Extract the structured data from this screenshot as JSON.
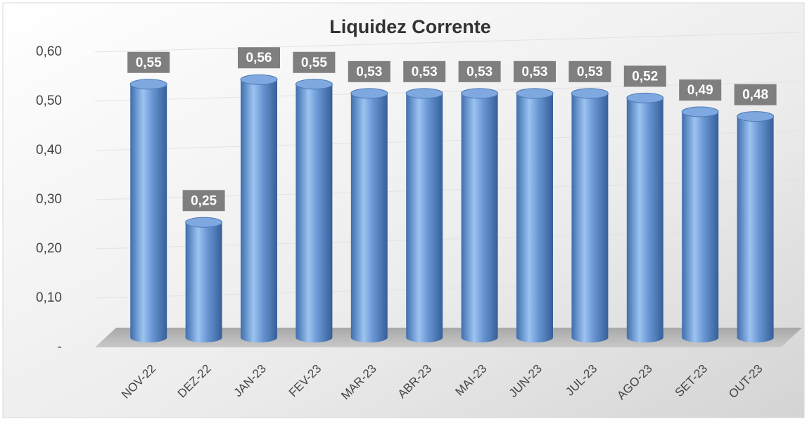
{
  "chart_data": {
    "type": "bar3d",
    "title": "Liquidez Corrente",
    "categories": [
      "NOV-22",
      "DEZ-22",
      "JAN-23",
      "FEV-23",
      "MAR-23",
      "ABR-23",
      "MAI-23",
      "JUN-23",
      "JUL-23",
      "AGO-23",
      "SET-23",
      "OUT-23"
    ],
    "values": [
      0.55,
      0.25,
      0.56,
      0.55,
      0.53,
      0.53,
      0.53,
      0.53,
      0.53,
      0.52,
      0.49,
      0.48
    ],
    "value_labels": [
      "0,55",
      "0,25",
      "0,56",
      "0,55",
      "0,53",
      "0,53",
      "0,53",
      "0,53",
      "0,53",
      "0,52",
      "0,49",
      "0,48"
    ],
    "color": "#5b8fd0",
    "ylim": [
      0,
      0.6
    ],
    "yticks": [
      {
        "value": 0,
        "label": "-"
      },
      {
        "value": 0.1,
        "label": "0,10"
      },
      {
        "value": 0.2,
        "label": "0,20"
      },
      {
        "value": 0.3,
        "label": "0,30"
      },
      {
        "value": 0.4,
        "label": "0,40"
      },
      {
        "value": 0.5,
        "label": "0,50"
      },
      {
        "value": 0.6,
        "label": "0,60"
      }
    ],
    "grid": true
  }
}
